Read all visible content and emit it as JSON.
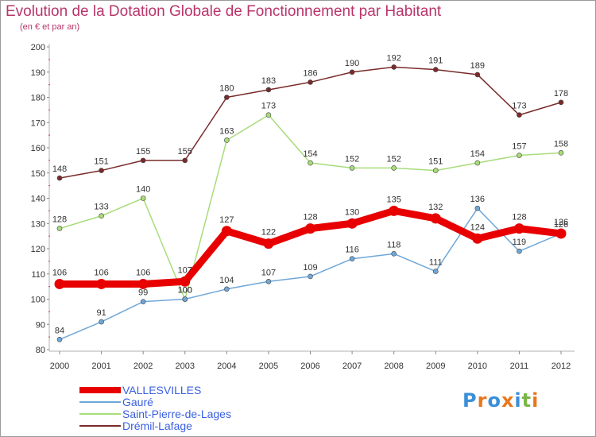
{
  "header": {
    "title": "Evolution de la Dotation Globale de Fonctionnement par Habitant",
    "subtitle": "(en € et par an)"
  },
  "logo": {
    "text": "Proxiti",
    "colors": [
      "#3b8fd6",
      "#e8771e",
      "#3b8fd6",
      "#e8771e",
      "#3b8fd6",
      "#7ab648",
      "#e8771e"
    ]
  },
  "chart_data": {
    "type": "line",
    "title": "Evolution de la Dotation Globale de Fonctionnement par Habitant",
    "subtitle": "(en € et par an)",
    "xlabel": "",
    "ylabel": "",
    "x": [
      "2000",
      "2001",
      "2002",
      "2003",
      "2004",
      "2005",
      "2006",
      "2007",
      "2008",
      "2009",
      "2010",
      "2011",
      "2012"
    ],
    "ylim": [
      80,
      200
    ],
    "yticks": [
      80,
      90,
      100,
      110,
      120,
      130,
      140,
      150,
      160,
      170,
      180,
      190,
      200
    ],
    "grid": false,
    "legend_position": "bottom-left",
    "series": [
      {
        "name": "VALLESVILLES",
        "color": "#e80000",
        "values": [
          106,
          106,
          106,
          107,
          127,
          122,
          128,
          130,
          135,
          132,
          124,
          128,
          126
        ]
      },
      {
        "name": "Gauré",
        "color": "#6fa7d8",
        "values": [
          84,
          91,
          99,
          100,
          104,
          107,
          109,
          116,
          118,
          111,
          136,
          119,
          126
        ]
      },
      {
        "name": "Saint-Pierre-de-Lages",
        "color": "#a8dc7a",
        "values": [
          128,
          133,
          140,
          100,
          163,
          173,
          154,
          152,
          152,
          151,
          154,
          157,
          158
        ]
      },
      {
        "name": "Drémil-Lafage",
        "color": "#7a2a2a",
        "values": [
          148,
          151,
          155,
          155,
          180,
          183,
          186,
          190,
          192,
          191,
          189,
          173,
          178
        ]
      }
    ]
  }
}
